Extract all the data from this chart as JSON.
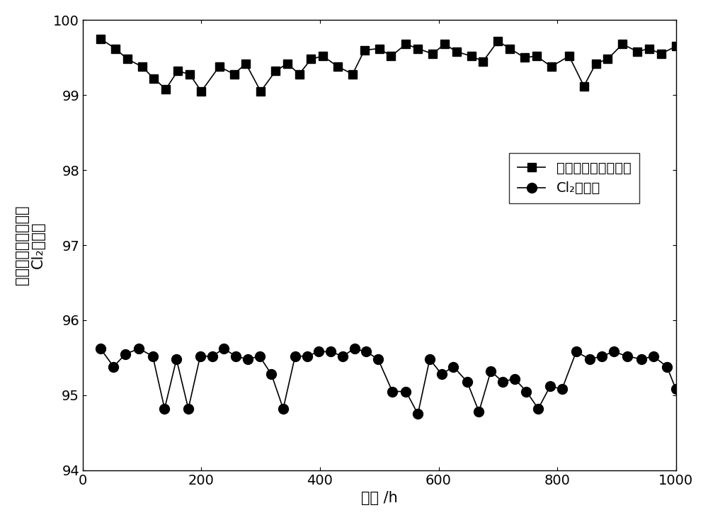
{
  "series1_x": [
    30,
    55,
    75,
    100,
    120,
    140,
    160,
    180,
    200,
    230,
    255,
    275,
    300,
    325,
    345,
    365,
    385,
    405,
    430,
    455,
    475,
    500,
    520,
    545,
    565,
    590,
    610,
    630,
    655,
    675,
    700,
    720,
    745,
    765,
    790,
    820,
    845,
    865,
    885,
    910,
    935,
    955,
    975,
    1000
  ],
  "series1_y": [
    99.75,
    99.62,
    99.48,
    99.38,
    99.22,
    99.08,
    99.32,
    99.28,
    99.05,
    99.38,
    99.28,
    99.42,
    99.05,
    99.32,
    99.42,
    99.28,
    99.48,
    99.52,
    99.38,
    99.28,
    99.6,
    99.62,
    99.52,
    99.68,
    99.62,
    99.55,
    99.68,
    99.58,
    99.52,
    99.45,
    99.72,
    99.62,
    99.5,
    99.52,
    99.38,
    99.52,
    99.12,
    99.42,
    99.48,
    99.68,
    99.58,
    99.62,
    99.55,
    99.65
  ],
  "series2_x": [
    30,
    52,
    72,
    95,
    118,
    138,
    158,
    178,
    198,
    218,
    238,
    258,
    278,
    298,
    318,
    338,
    358,
    378,
    398,
    418,
    438,
    458,
    478,
    498,
    522,
    545,
    565,
    585,
    605,
    625,
    648,
    668,
    688,
    708,
    728,
    748,
    768,
    788,
    808,
    832,
    855,
    875,
    895,
    918,
    942,
    962,
    985,
    1000
  ],
  "series2_y": [
    95.62,
    95.38,
    95.55,
    95.62,
    95.52,
    94.82,
    95.48,
    94.82,
    95.52,
    95.52,
    95.62,
    95.52,
    95.48,
    95.52,
    95.28,
    94.82,
    95.52,
    95.52,
    95.58,
    95.58,
    95.52,
    95.62,
    95.58,
    95.48,
    95.05,
    95.05,
    94.75,
    95.48,
    95.28,
    95.38,
    95.18,
    94.78,
    95.32,
    95.18,
    95.22,
    95.05,
    94.82,
    95.12,
    95.08,
    95.58,
    95.48,
    95.52,
    95.58,
    95.52,
    95.48,
    95.52,
    95.38,
    95.08
  ],
  "ylabel_line1": "含氯有机废气转化率",
  "ylabel_line2": "Cl₂选择性",
  "xlabel": "时间 /h",
  "legend1": "含氯有机废气转化率",
  "legend2": "Cl₂选择性",
  "xlim": [
    0,
    1000
  ],
  "ylim": [
    94,
    100
  ],
  "yticks": [
    94,
    95,
    96,
    97,
    98,
    99,
    100
  ],
  "xticks": [
    0,
    200,
    400,
    600,
    800,
    1000
  ],
  "color": "#000000",
  "bg_color": "#ffffff",
  "fontsize_label": 15,
  "fontsize_tick": 14,
  "fontsize_legend": 14
}
